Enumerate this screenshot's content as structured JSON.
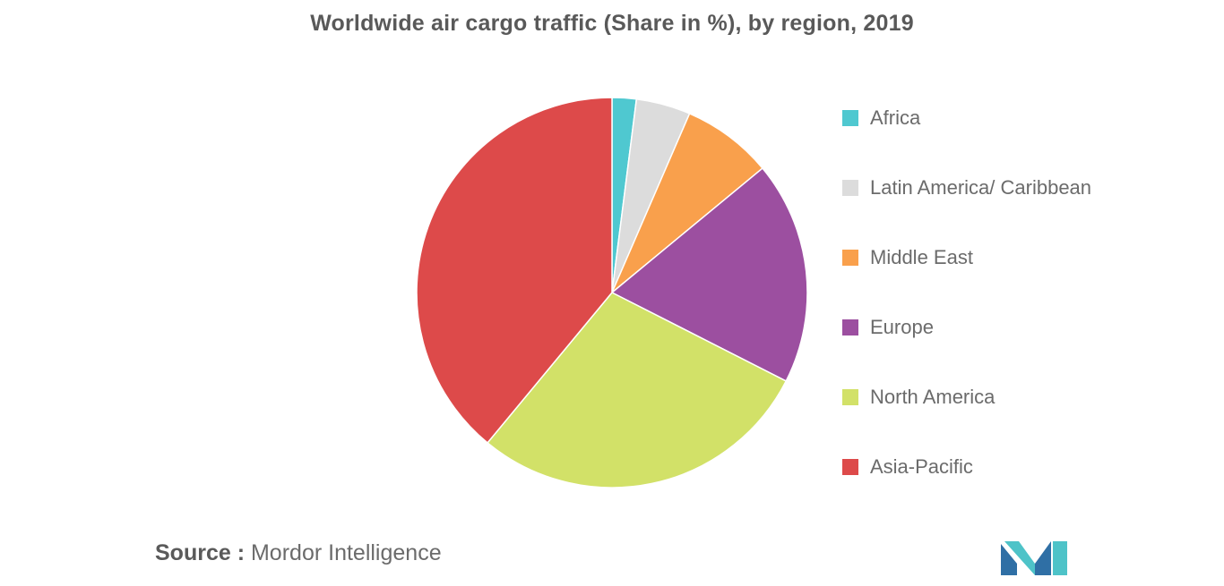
{
  "chart_data": {
    "type": "pie",
    "title": "Worldwide air cargo traffic (Share in %), by region, 2019",
    "categories": [
      "Africa",
      "Latin America/ Caribbean",
      "Middle East",
      "Europe",
      "North America",
      "Asia-Pacific"
    ],
    "values": [
      2,
      4.5,
      7.5,
      18.5,
      28.5,
      39
    ],
    "colors": [
      "#4fc8d0",
      "#dcdcdc",
      "#f9a04c",
      "#9c4fa0",
      "#d2e168",
      "#dd4a4a"
    ],
    "legend_position": "right"
  },
  "source": {
    "label": "Source :",
    "text": "Mordor Intelligence"
  },
  "logo": {
    "icon": "mordor-intelligence-logo",
    "colors": [
      "#2f6fa5",
      "#4ec3c8"
    ]
  }
}
